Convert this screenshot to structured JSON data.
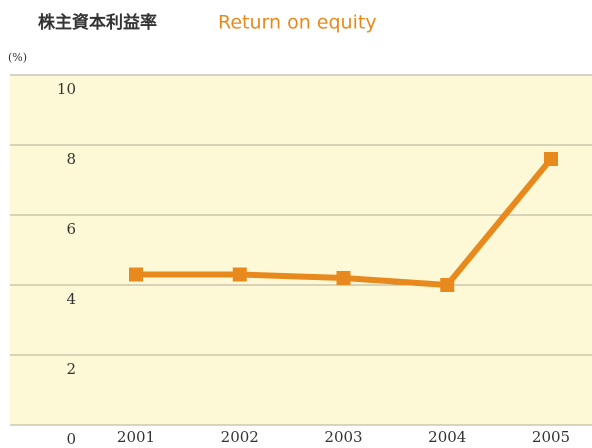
{
  "chart_data": {
    "type": "line",
    "title": "株主資本利益率",
    "subtitle": "Return on equity",
    "ylabel": "(%)",
    "categories": [
      "2001",
      "2002",
      "2003",
      "2004",
      "2005"
    ],
    "series": [
      {
        "name": "Return on equity",
        "color": "#e8891d",
        "values": [
          4.3,
          4.3,
          4.2,
          4.0,
          7.6
        ]
      }
    ],
    "ylim": [
      0,
      10
    ],
    "yticks": [
      0,
      2,
      4,
      6,
      8,
      10
    ],
    "grid": true,
    "background": "#fdf9d6"
  }
}
